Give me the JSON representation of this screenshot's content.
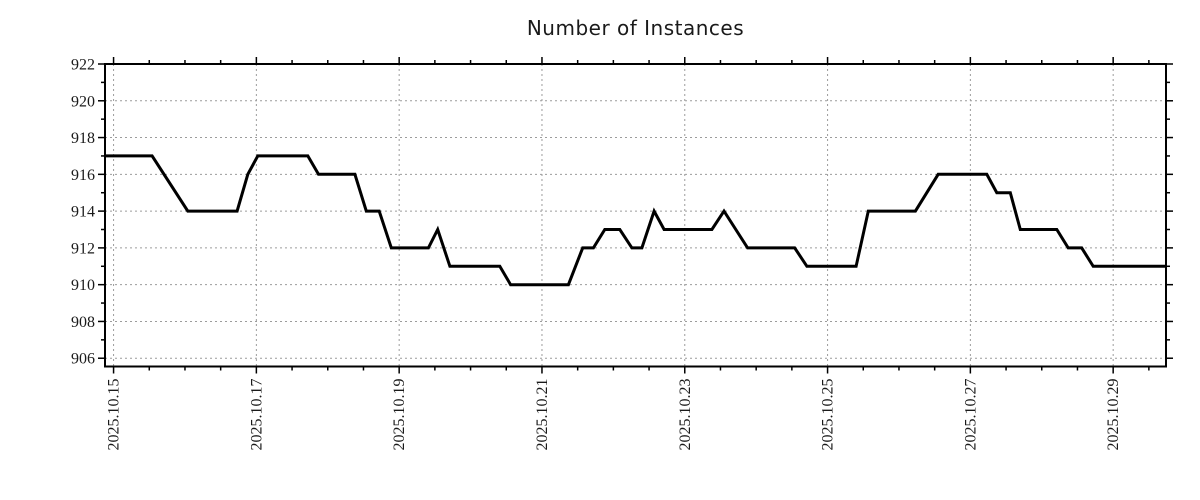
{
  "chart_data": {
    "type": "line",
    "title": "Number of Instances",
    "xlabel": "",
    "ylabel": "",
    "legend_position": "none",
    "grid": "dotted gridlines at major ticks, both axes",
    "x_axis": {
      "unit": "days relative to 2025-10-15 00:00",
      "range": [
        -0.12,
        14.74
      ],
      "major_ticks": [
        {
          "t": 0,
          "label": "2025.10.15"
        },
        {
          "t": 2,
          "label": "2025.10.17"
        },
        {
          "t": 4,
          "label": "2025.10.19"
        },
        {
          "t": 6,
          "label": "2025.10.21"
        },
        {
          "t": 8,
          "label": "2025.10.23"
        },
        {
          "t": 10,
          "label": "2025.10.25"
        },
        {
          "t": 12,
          "label": "2025.10.27"
        },
        {
          "t": 14,
          "label": "2025.10.29"
        }
      ],
      "minor_tick_step": 0.5,
      "tick_label_rotation_deg": -90
    },
    "y_axis": {
      "range": [
        905.55,
        922
      ],
      "major_ticks": [
        906,
        908,
        910,
        912,
        914,
        916,
        918,
        920,
        922
      ],
      "minor_tick_step": 1
    },
    "series": [
      {
        "name": "instances",
        "color": "#000000",
        "points": [
          [
            -0.12,
            917
          ],
          [
            0.54,
            917
          ],
          [
            1.04,
            914
          ],
          [
            1.73,
            914
          ],
          [
            1.88,
            916
          ],
          [
            2.02,
            917
          ],
          [
            2.72,
            917
          ],
          [
            2.87,
            916
          ],
          [
            3.38,
            916
          ],
          [
            3.54,
            914
          ],
          [
            3.72,
            914
          ],
          [
            3.89,
            912
          ],
          [
            4.41,
            912
          ],
          [
            4.54,
            913
          ],
          [
            4.71,
            911
          ],
          [
            5.41,
            911
          ],
          [
            5.56,
            910
          ],
          [
            6.37,
            910
          ],
          [
            6.57,
            912
          ],
          [
            6.72,
            912
          ],
          [
            6.88,
            913
          ],
          [
            7.09,
            913
          ],
          [
            7.26,
            912
          ],
          [
            7.4,
            912
          ],
          [
            7.57,
            914
          ],
          [
            7.71,
            913
          ],
          [
            8.38,
            913
          ],
          [
            8.55,
            914
          ],
          [
            8.88,
            912
          ],
          [
            9.54,
            912
          ],
          [
            9.71,
            911
          ],
          [
            10.4,
            911
          ],
          [
            10.57,
            914
          ],
          [
            11.23,
            914
          ],
          [
            11.55,
            916
          ],
          [
            12.23,
            916
          ],
          [
            12.37,
            915
          ],
          [
            12.56,
            915
          ],
          [
            12.7,
            913
          ],
          [
            13.21,
            913
          ],
          [
            13.37,
            912
          ],
          [
            13.56,
            912
          ],
          [
            13.72,
            911
          ],
          [
            14.74,
            911
          ]
        ]
      }
    ]
  },
  "style": {
    "background": "#ffffff",
    "line_color": "#000000",
    "axis_color": "#000000",
    "grid_color": "#9c9c9c",
    "title_color": "#1a1a1a",
    "tick_label_color": "#1a1a1a"
  }
}
